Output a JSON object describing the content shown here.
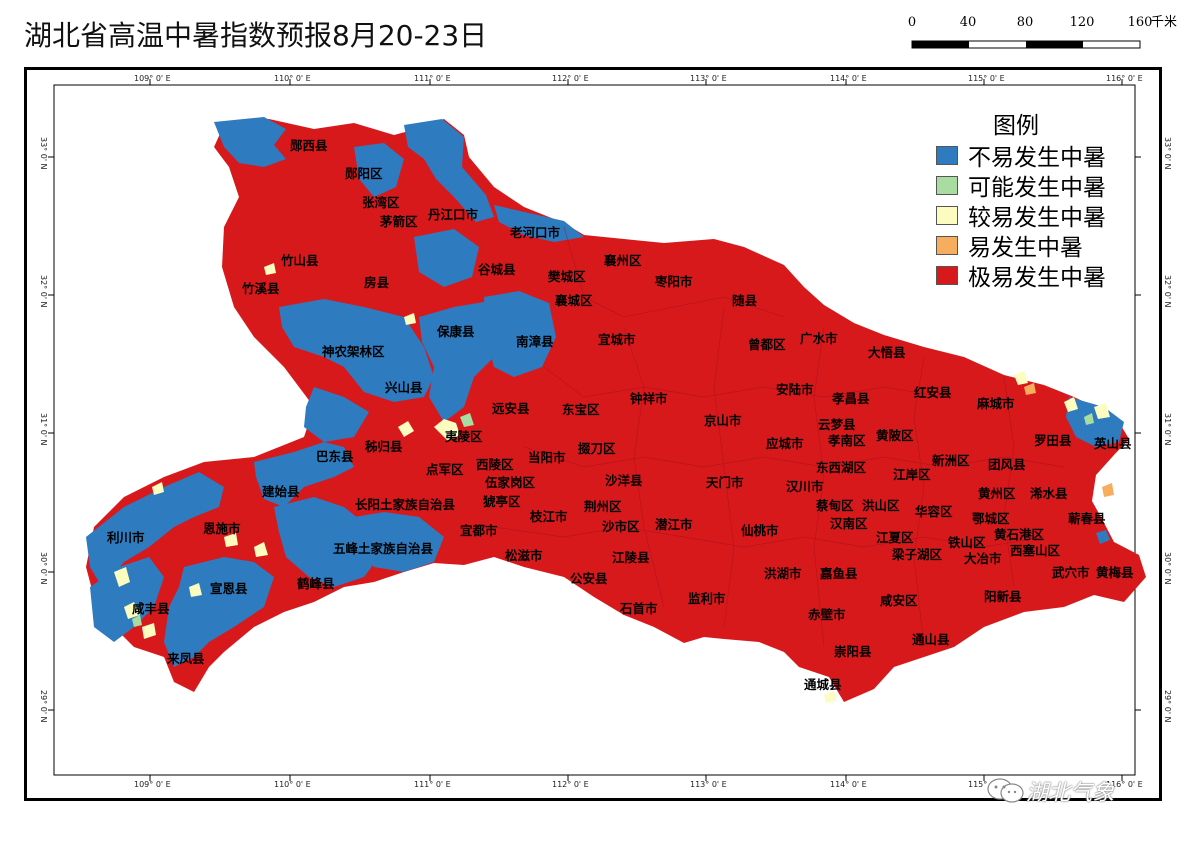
{
  "title": "湖北省高温中暑指数预报8月20-23日",
  "scale": {
    "ticks": [
      "0",
      "40",
      "80",
      "120",
      "160"
    ],
    "unit": "千米"
  },
  "legend": {
    "title": "图例",
    "items": [
      {
        "label": "不易发生中暑",
        "color": "#2e7bbf"
      },
      {
        "label": "可能发生中暑",
        "color": "#a8dca0"
      },
      {
        "label": "较易发生中暑",
        "color": "#fcfcc0"
      },
      {
        "label": "易发生中暑",
        "color": "#f6ad5e"
      },
      {
        "label": "极易发生中暑",
        "color": "#d7191c"
      }
    ]
  },
  "graticule": {
    "top": [
      "109° 0' E",
      "110° 0' E",
      "111° 0' E",
      "112° 0' E",
      "113° 0' E",
      "114° 0' E",
      "115° 0' E",
      "116° 0' E"
    ],
    "bottom": [
      "109° 0' E",
      "110° 0' E",
      "111° 0' E",
      "112° 0' E",
      "113° 0' E",
      "114° 0' E",
      "115° 0' E",
      "116° 0' E"
    ],
    "left": [
      "33° 0' N",
      "32° 0' N",
      "31° 0' N",
      "30° 0' N",
      "29° 0' N"
    ],
    "right": [
      "33° 0' N",
      "32° 0' N",
      "31° 0' N",
      "30° 0' N",
      "29° 0' N"
    ]
  },
  "places": [
    "郧西县",
    "郧阳区",
    "张湾区",
    "茅箭区",
    "丹江口市",
    "老河口市",
    "竹山县",
    "谷城县",
    "襄州区",
    "房县",
    "樊城区",
    "枣阳市",
    "竹溪县",
    "襄城区",
    "随县",
    "保康县",
    "南漳县",
    "宜城市",
    "神农架林区",
    "曾都区",
    "广水市",
    "大悟县",
    "兴山县",
    "安陆市",
    "孝昌县",
    "红安县",
    "麻城市",
    "远安县",
    "东宝区",
    "钟祥市",
    "京山市",
    "云梦县",
    "巴东县",
    "秭归县",
    "夷陵区",
    "孝南区",
    "黄陂区",
    "罗田县",
    "英山县",
    "点军区",
    "西陵区",
    "当阳市",
    "掇刀区",
    "应城市",
    "东西湖区",
    "新洲区",
    "团风县",
    "建始县",
    "伍家岗区",
    "沙洋县",
    "天门市",
    "汉川市",
    "江岸区",
    "猇亭区",
    "蔡甸区",
    "洪山区",
    "黄州区",
    "浠水县",
    "利川市",
    "恩施市",
    "长阳土家族自治县",
    "宜都市",
    "荆州区",
    "枝江市",
    "沙市区",
    "潜江市",
    "仙桃市",
    "汉南区",
    "华容区",
    "鄂城区",
    "蕲春县",
    "江夏区",
    "铁山区",
    "黄石港区",
    "西塞山区",
    "五峰土家族自治县",
    "松滋市",
    "江陵县",
    "梁子湖区",
    "大冶市",
    "宣恩县",
    "鹤峰县",
    "公安县",
    "洪湖市",
    "嘉鱼县",
    "武穴市",
    "黄梅县",
    "咸丰县",
    "咸安区",
    "阳新县",
    "石首市",
    "监利市",
    "赤壁市",
    "来凤县",
    "崇阳县",
    "通山县",
    "通城县"
  ],
  "watermark": "湖北气象"
}
